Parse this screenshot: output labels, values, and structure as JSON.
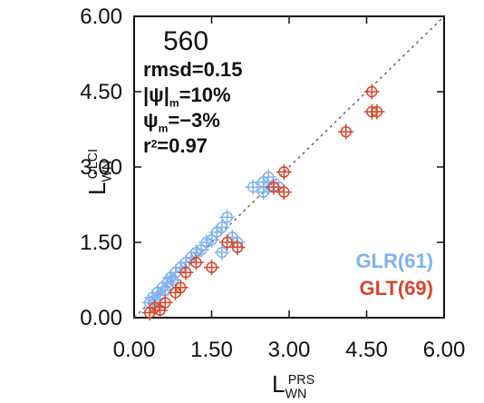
{
  "chart_data": {
    "type": "scatter",
    "title": "560",
    "annotations": [
      [
        {
          "text": "rmsd=0.15",
          "pos": "base"
        }
      ],
      [
        {
          "text": "|ψ|",
          "pos": "base"
        },
        {
          "text": "m",
          "pos": "sub"
        },
        {
          "text": "=10%",
          "pos": "base"
        }
      ],
      [
        {
          "text": "ψ",
          "pos": "base"
        },
        {
          "text": "m",
          "pos": "sub"
        },
        {
          "text": "=−3%",
          "pos": "base"
        }
      ],
      [
        {
          "text": "r",
          "pos": "base"
        },
        {
          "text": "2",
          "pos": "sup"
        },
        {
          "text": "=0.97",
          "pos": "base"
        }
      ]
    ],
    "xlabel": [
      {
        "text": "L",
        "pos": "base"
      },
      {
        "text": "WN",
        "pos": "sub"
      },
      {
        "text": "PRS",
        "pos": "sup"
      }
    ],
    "ylabel": [
      {
        "text": "L",
        "pos": "base"
      },
      {
        "text": "WN",
        "pos": "sub"
      },
      {
        "text": "OLCI",
        "pos": "sup"
      }
    ],
    "xlim": [
      0,
      6
    ],
    "ylim": [
      0,
      6
    ],
    "xticks": [
      {
        "value": 0,
        "label": "0.00"
      },
      {
        "value": 1.5,
        "label": "1.50"
      },
      {
        "value": 3,
        "label": "3.00"
      },
      {
        "value": 4.5,
        "label": "4.50"
      },
      {
        "value": 6,
        "label": "6.00"
      }
    ],
    "yticks": [
      {
        "value": 0,
        "label": "0.00"
      },
      {
        "value": 1.5,
        "label": "1.50"
      },
      {
        "value": 3,
        "label": "3.00"
      },
      {
        "value": 4.5,
        "label": "4.50"
      },
      {
        "value": 6,
        "label": "6.00"
      }
    ],
    "one_to_one_line": true,
    "legend": "lower right",
    "series": [
      {
        "name": "GLR(61)",
        "color": "#7fb2ef",
        "x": [
          0.3,
          0.35,
          0.4,
          0.45,
          0.5,
          0.55,
          0.6,
          0.65,
          0.7,
          0.75,
          0.8,
          0.9,
          1.0,
          1.1,
          1.2,
          1.3,
          1.4,
          1.5,
          1.6,
          1.7,
          1.8,
          1.9,
          2.0,
          1.7,
          2.3,
          2.5,
          2.6,
          2.6,
          2.8,
          2.5
        ],
        "y": [
          0.3,
          0.4,
          0.35,
          0.5,
          0.45,
          0.6,
          0.55,
          0.7,
          0.8,
          0.75,
          0.9,
          1.0,
          1.1,
          1.2,
          1.3,
          1.35,
          1.5,
          1.55,
          1.7,
          1.8,
          2.0,
          1.6,
          1.5,
          1.3,
          2.6,
          2.5,
          2.6,
          2.8,
          2.6,
          2.7
        ]
      },
      {
        "name": "GLT(69)",
        "color": "#d9452b",
        "x": [
          0.3,
          0.4,
          0.5,
          0.6,
          0.8,
          0.9,
          1.0,
          1.2,
          1.5,
          1.8,
          2.0,
          2.9,
          2.9,
          4.1,
          4.6,
          4.7,
          4.6,
          2.7
        ],
        "y": [
          0.1,
          0.2,
          0.15,
          0.3,
          0.5,
          0.6,
          0.9,
          1.1,
          1.0,
          1.5,
          1.4,
          2.9,
          2.5,
          3.7,
          4.1,
          4.1,
          4.5,
          2.6
        ]
      }
    ]
  }
}
